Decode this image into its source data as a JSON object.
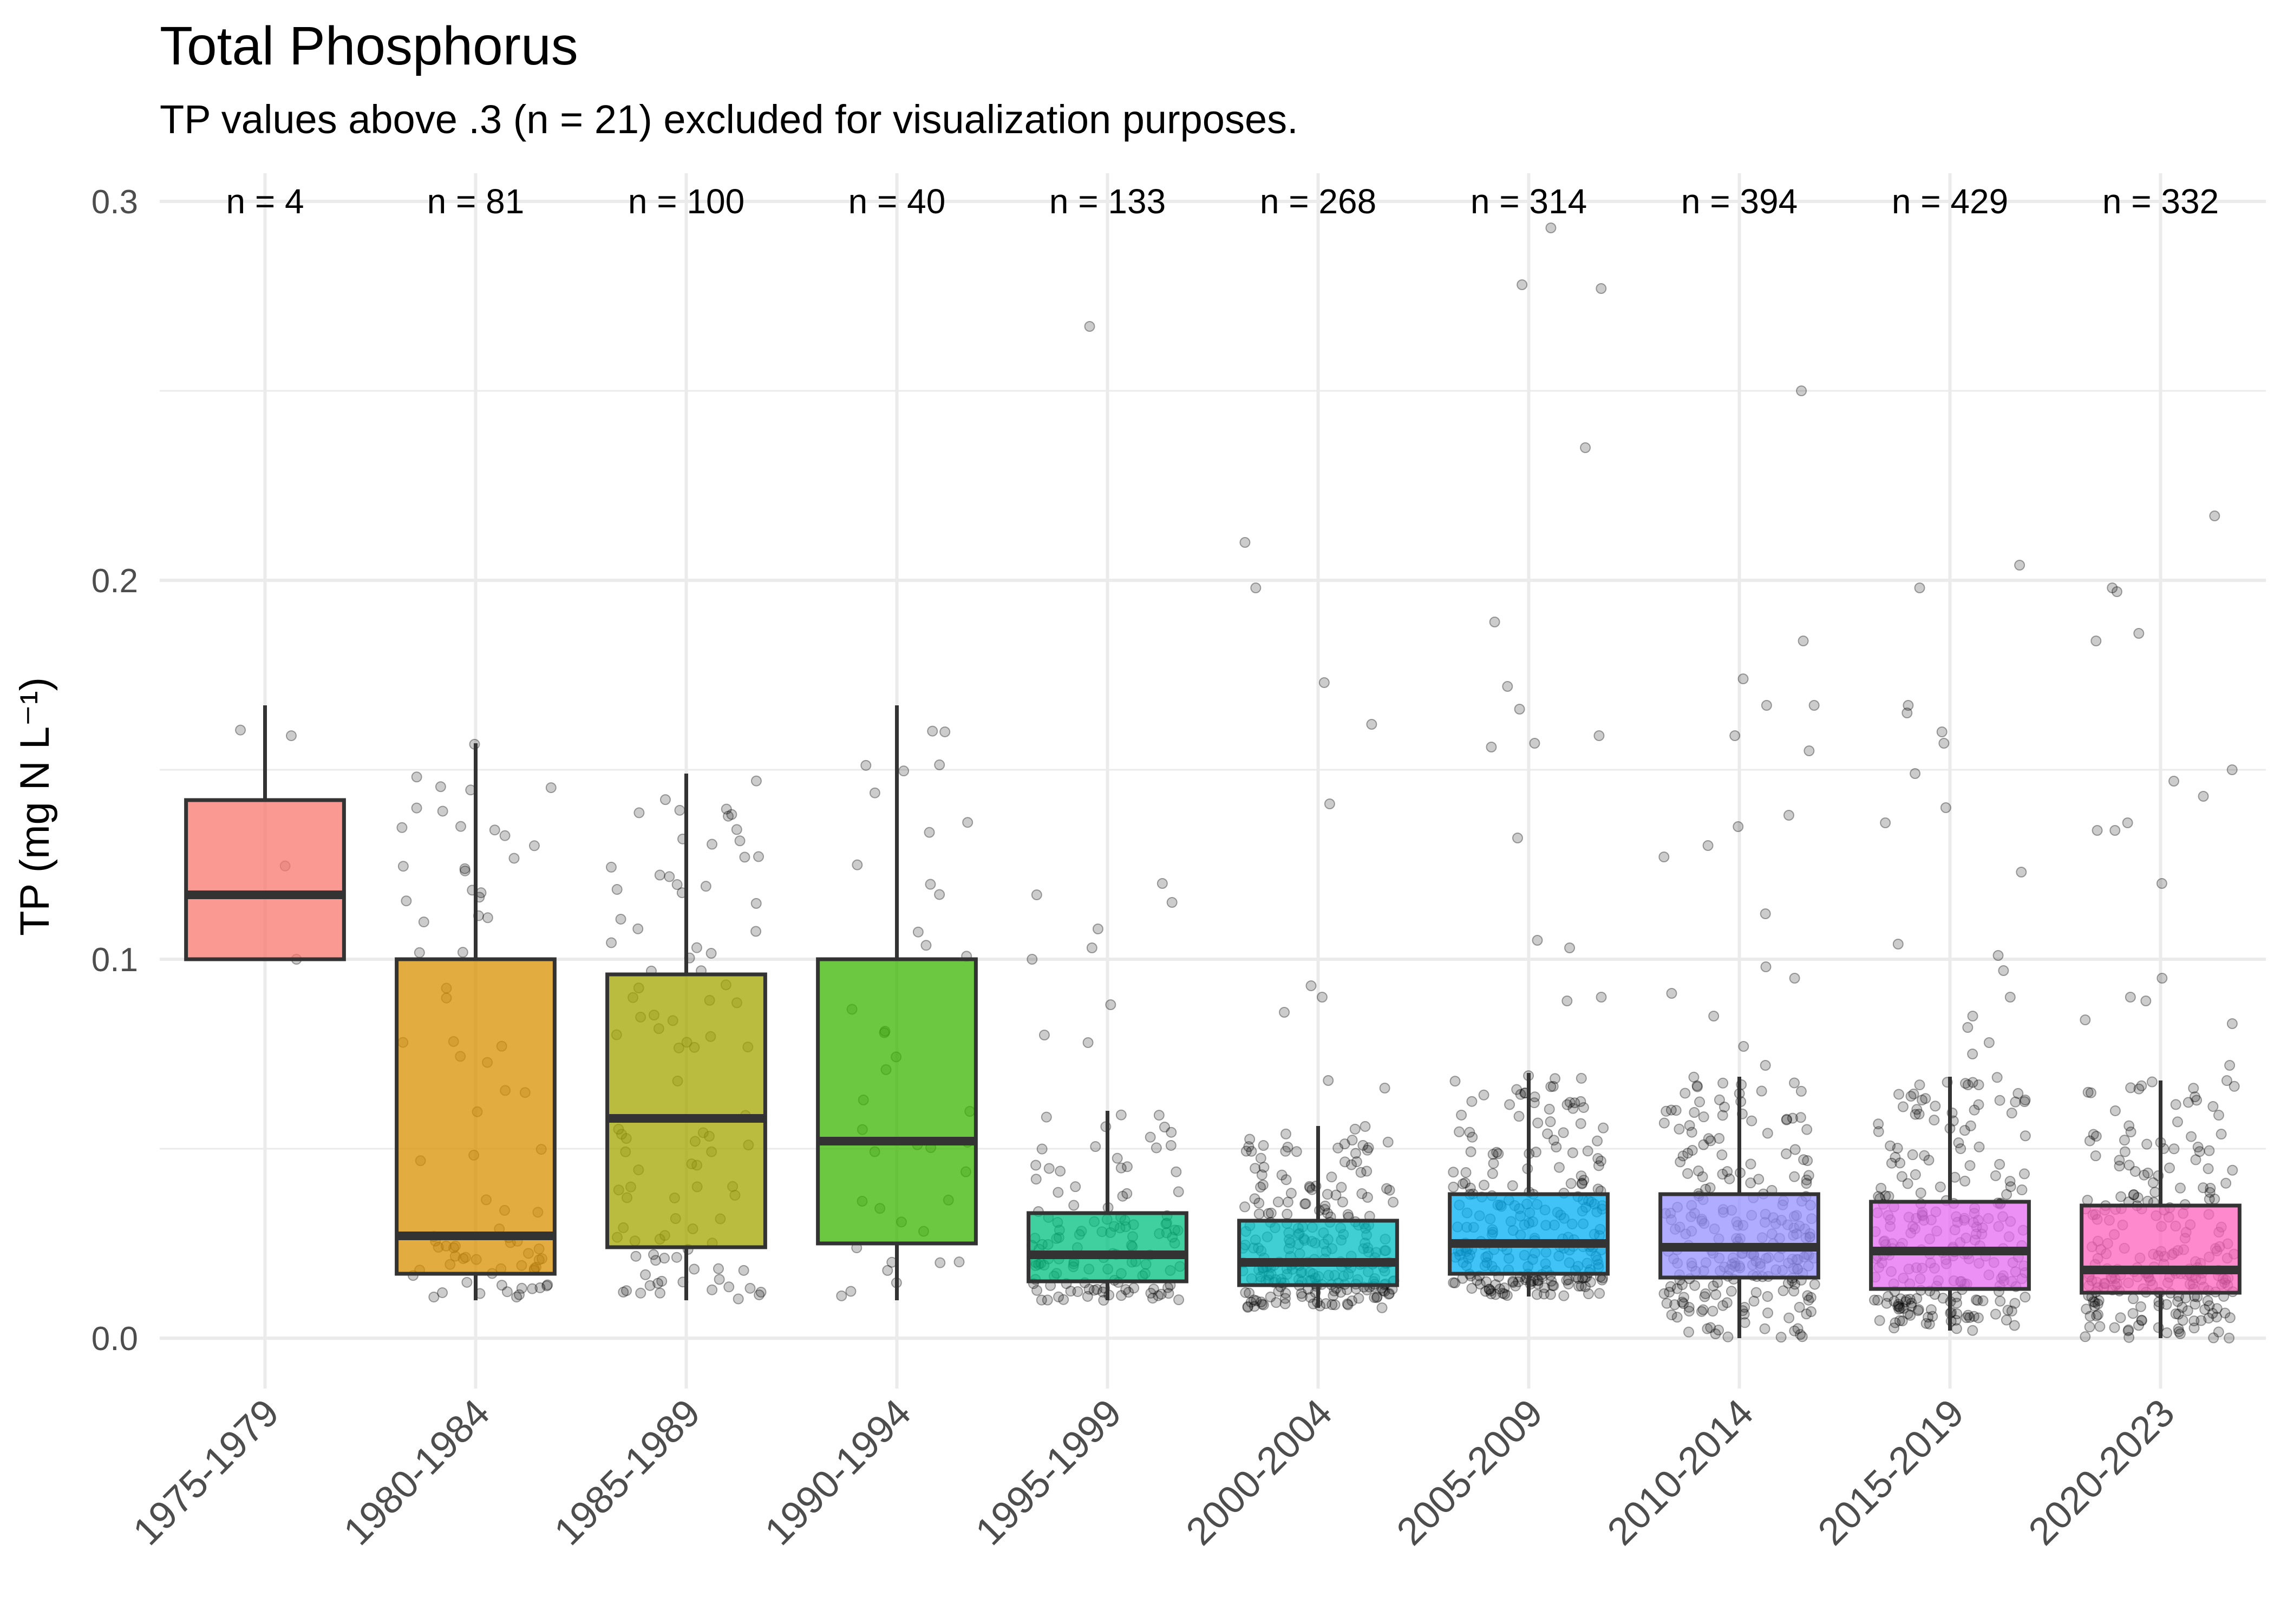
{
  "chart_data": {
    "type": "box",
    "title": "Total Phosphorus",
    "subtitle": "TP values above .3 (n = 21) excluded for visualization purposes.",
    "ylabel": "TP (mg N L⁻¹)",
    "xlabel": "",
    "ylim": [
      0,
      0.3
    ],
    "yticks": [
      0.0,
      0.1,
      0.2,
      0.3
    ],
    "ytick_labels": [
      "0.0",
      "0.1",
      "0.2",
      "0.3"
    ],
    "grid": true,
    "legend": "none",
    "categories": [
      "1975-1979",
      "1980-1984",
      "1985-1989",
      "1990-1994",
      "1995-1999",
      "2000-2004",
      "2005-2009",
      "2010-2014",
      "2015-2019",
      "2020-2023"
    ],
    "n_labels": [
      "n = 4",
      "n = 81",
      "n = 100",
      "n = 40",
      "n = 133",
      "n = 268",
      "n = 314",
      "n = 394",
      "n = 429",
      "n = 332"
    ],
    "colors": [
      "#F8766D",
      "#D89000",
      "#A3A500",
      "#39B600",
      "#00BF7D",
      "#00BFC4",
      "#00B0F6",
      "#9590FF",
      "#E76BF3",
      "#FF62BC"
    ],
    "boxes": [
      {
        "lower_whisker": 0.1,
        "q1": 0.1,
        "median": 0.117,
        "q3": 0.142,
        "upper_whisker": 0.167
      },
      {
        "lower_whisker": 0.01,
        "q1": 0.017,
        "median": 0.027,
        "q3": 0.1,
        "upper_whisker": 0.157
      },
      {
        "lower_whisker": 0.01,
        "q1": 0.024,
        "median": 0.058,
        "q3": 0.096,
        "upper_whisker": 0.149
      },
      {
        "lower_whisker": 0.01,
        "q1": 0.025,
        "median": 0.052,
        "q3": 0.1,
        "upper_whisker": 0.167
      },
      {
        "lower_whisker": 0.01,
        "q1": 0.015,
        "median": 0.022,
        "q3": 0.033,
        "upper_whisker": 0.06
      },
      {
        "lower_whisker": 0.008,
        "q1": 0.014,
        "median": 0.02,
        "q3": 0.031,
        "upper_whisker": 0.056
      },
      {
        "lower_whisker": 0.011,
        "q1": 0.017,
        "median": 0.025,
        "q3": 0.038,
        "upper_whisker": 0.07
      },
      {
        "lower_whisker": 0.0,
        "q1": 0.016,
        "median": 0.024,
        "q3": 0.038,
        "upper_whisker": 0.069
      },
      {
        "lower_whisker": 0.002,
        "q1": 0.013,
        "median": 0.023,
        "q3": 0.036,
        "upper_whisker": 0.069
      },
      {
        "lower_whisker": 0.0,
        "q1": 0.012,
        "median": 0.018,
        "q3": 0.035,
        "upper_whisker": 0.068
      }
    ],
    "outliers": [
      [],
      [],
      [],
      [],
      [
        0.267,
        0.12,
        0.117,
        0.115,
        0.108,
        0.103,
        0.1,
        0.088,
        0.08,
        0.078
      ],
      [
        0.21,
        0.198,
        0.173,
        0.162,
        0.141,
        0.093,
        0.09,
        0.086,
        0.068,
        0.066
      ],
      [
        0.293,
        0.278,
        0.277,
        0.235,
        0.189,
        0.172,
        0.166,
        0.159,
        0.157,
        0.156,
        0.132,
        0.105,
        0.103,
        0.09,
        0.089
      ],
      [
        0.25,
        0.184,
        0.174,
        0.167,
        0.167,
        0.159,
        0.155,
        0.138,
        0.135,
        0.13,
        0.127,
        0.112,
        0.098,
        0.095,
        0.091,
        0.085,
        0.077,
        0.072
      ],
      [
        0.204,
        0.198,
        0.167,
        0.165,
        0.16,
        0.157,
        0.149,
        0.14,
        0.136,
        0.123,
        0.104,
        0.101,
        0.097,
        0.09,
        0.085,
        0.082,
        0.078,
        0.075
      ],
      [
        0.217,
        0.198,
        0.197,
        0.186,
        0.184,
        0.15,
        0.147,
        0.143,
        0.136,
        0.134,
        0.134,
        0.12,
        0.095,
        0.09,
        0.089,
        0.084,
        0.083,
        0.072
      ]
    ]
  }
}
